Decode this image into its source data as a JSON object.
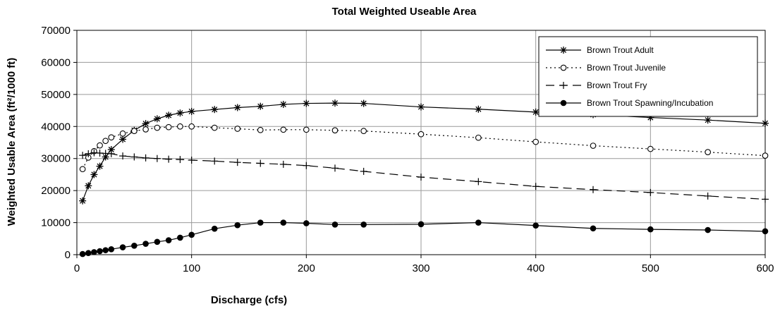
{
  "chart_data": {
    "type": "line",
    "title": "Total Weighted Useable Area",
    "xlabel": "Discharge (cfs)",
    "ylabel": "Weighted Usable Area (ft²/1000 ft)",
    "xlim": [
      0,
      600
    ],
    "ylim": [
      0,
      70000
    ],
    "xticks": [
      0,
      100,
      200,
      300,
      400,
      500,
      600
    ],
    "yticks": [
      0,
      10000,
      20000,
      30000,
      40000,
      50000,
      60000,
      70000
    ],
    "grid": true,
    "legend_position": "top-right",
    "series": [
      {
        "name": "Brown Trout Adult",
        "marker": "asterisk",
        "dash": "solid",
        "x": [
          5,
          10,
          15,
          20,
          25,
          30,
          40,
          50,
          60,
          70,
          80,
          90,
          100,
          120,
          140,
          160,
          180,
          200,
          225,
          250,
          300,
          350,
          400,
          450,
          500,
          550,
          600
        ],
        "y": [
          16800,
          21500,
          25000,
          27600,
          30500,
          32800,
          36000,
          38800,
          40900,
          42400,
          43500,
          44200,
          44700,
          45300,
          45900,
          46300,
          46900,
          47200,
          47300,
          47200,
          46100,
          45400,
          44500,
          43700,
          42800,
          42000,
          41000
        ]
      },
      {
        "name": "Brown Trout Juvenile",
        "marker": "open-circle",
        "dash": "dotted",
        "x": [
          5,
          10,
          15,
          20,
          25,
          30,
          40,
          50,
          60,
          70,
          80,
          90,
          100,
          120,
          140,
          160,
          180,
          200,
          225,
          250,
          300,
          350,
          400,
          450,
          500,
          550,
          600
        ],
        "y": [
          26700,
          30300,
          32300,
          34100,
          35500,
          36600,
          37800,
          38600,
          39100,
          39600,
          39800,
          40000,
          40000,
          39600,
          39300,
          38900,
          39000,
          39000,
          38800,
          38600,
          37600,
          36500,
          35200,
          34000,
          33000,
          32000,
          30900
        ]
      },
      {
        "name": "Brown Trout Fry",
        "marker": "plus",
        "dash": "dashed",
        "x": [
          5,
          10,
          15,
          20,
          25,
          30,
          40,
          50,
          60,
          70,
          80,
          90,
          100,
          120,
          140,
          160,
          180,
          200,
          225,
          250,
          300,
          350,
          400,
          450,
          500,
          550,
          600
        ],
        "y": [
          31000,
          31500,
          31800,
          31700,
          31600,
          31500,
          30800,
          30500,
          30200,
          30000,
          29800,
          29700,
          29500,
          29200,
          28800,
          28500,
          28200,
          27800,
          27000,
          26000,
          24200,
          22800,
          21300,
          20300,
          19400,
          18300,
          17300
        ]
      },
      {
        "name": "Brown Trout Spawning/Incubation",
        "marker": "filled-circle",
        "dash": "solid",
        "x": [
          5,
          10,
          15,
          20,
          25,
          30,
          40,
          50,
          60,
          70,
          80,
          90,
          100,
          120,
          140,
          160,
          180,
          200,
          225,
          250,
          300,
          350,
          400,
          450,
          500,
          550,
          600
        ],
        "y": [
          200,
          500,
          800,
          1100,
          1400,
          1700,
          2300,
          2800,
          3400,
          4000,
          4500,
          5300,
          6200,
          8100,
          9200,
          10000,
          10000,
          9800,
          9400,
          9400,
          9500,
          10000,
          9100,
          8200,
          7900,
          7700,
          7300
        ]
      }
    ]
  }
}
